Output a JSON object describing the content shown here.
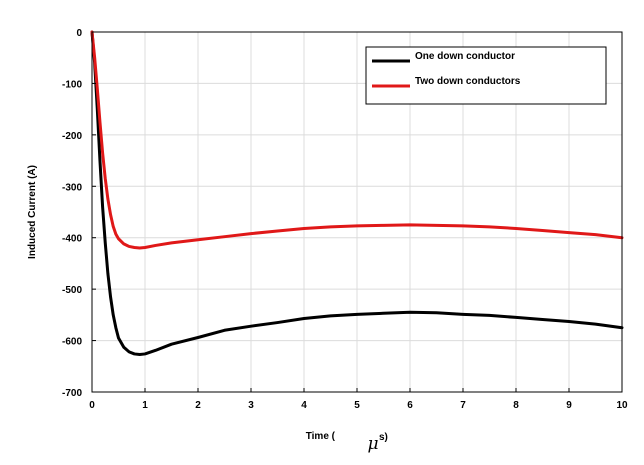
{
  "chart_data": {
    "type": "line",
    "title": "",
    "xlabel": {
      "prefix": "Time (",
      "symbol": "μ",
      "suffix": "s)"
    },
    "ylabel": "Induced Current (A)",
    "xlim": [
      0,
      10
    ],
    "ylim": [
      -700,
      0
    ],
    "xticks": [
      0,
      1,
      2,
      3,
      4,
      5,
      6,
      7,
      8,
      9,
      10
    ],
    "yticks": [
      0,
      -100,
      -200,
      -300,
      -400,
      -500,
      -600,
      -700
    ],
    "grid": true,
    "legend_position": "top-right",
    "series": [
      {
        "name": "One down conductor",
        "color": "#000000",
        "x": [
          0,
          0.05,
          0.1,
          0.15,
          0.2,
          0.25,
          0.3,
          0.35,
          0.4,
          0.45,
          0.5,
          0.6,
          0.7,
          0.8,
          0.9,
          1.0,
          1.2,
          1.5,
          2,
          2.5,
          3,
          3.5,
          4,
          4.5,
          5,
          5.5,
          6,
          6.5,
          7,
          7.5,
          8,
          8.5,
          9,
          9.5,
          10
        ],
        "y": [
          0,
          -60,
          -150,
          -250,
          -340,
          -410,
          -470,
          -515,
          -550,
          -575,
          -595,
          -613,
          -622,
          -626,
          -627,
          -626,
          -619,
          -607,
          -594,
          -580,
          -572,
          -565,
          -557,
          -552,
          -549,
          -547,
          -545,
          -546,
          -549,
          -551,
          -555,
          -559,
          -563,
          -568,
          -575
        ]
      },
      {
        "name": "Two down conductors",
        "color": "#e01818",
        "x": [
          0,
          0.05,
          0.1,
          0.15,
          0.2,
          0.25,
          0.3,
          0.35,
          0.4,
          0.45,
          0.5,
          0.6,
          0.7,
          0.8,
          0.9,
          1.0,
          1.2,
          1.5,
          2,
          2.5,
          3,
          3.5,
          4,
          4.5,
          5,
          5.5,
          6,
          6.5,
          7,
          7.5,
          8,
          8.5,
          9,
          9.5,
          10
        ],
        "y": [
          0,
          -50,
          -110,
          -175,
          -235,
          -285,
          -325,
          -355,
          -378,
          -393,
          -402,
          -412,
          -417,
          -419,
          -420,
          -419,
          -415,
          -410,
          -404,
          -398,
          -392,
          -387,
          -382,
          -379,
          -377,
          -376,
          -375,
          -376,
          -377,
          -379,
          -382,
          -386,
          -390,
          -394,
          -400
        ]
      }
    ]
  }
}
